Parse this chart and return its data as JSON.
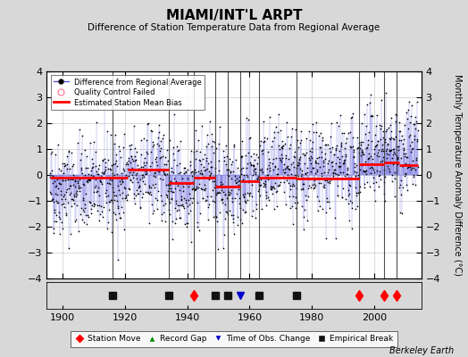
{
  "title": "MIAMI/INT'L ARPT",
  "subtitle": "Difference of Station Temperature Data from Regional Average",
  "ylabel": "Monthly Temperature Anomaly Difference (°C)",
  "xlabel_credit": "Berkeley Earth",
  "xlim": [
    1895,
    2015
  ],
  "ylim": [
    -4,
    4
  ],
  "yticks": [
    -4,
    -3,
    -2,
    -1,
    0,
    1,
    2,
    3,
    4
  ],
  "xticks": [
    1900,
    1920,
    1940,
    1960,
    1980,
    2000
  ],
  "bg_color": "#d8d8d8",
  "plot_bg_color": "#ffffff",
  "seed": 42,
  "data_start_year": 1896,
  "data_end_year": 2014,
  "bias_segments": [
    {
      "x_start": 1896,
      "x_end": 1921,
      "bias": -0.1
    },
    {
      "x_start": 1921,
      "x_end": 1934,
      "bias": 0.22
    },
    {
      "x_start": 1934,
      "x_end": 1942,
      "bias": -0.3
    },
    {
      "x_start": 1942,
      "x_end": 1949,
      "bias": -0.1
    },
    {
      "x_start": 1949,
      "x_end": 1957,
      "bias": -0.45
    },
    {
      "x_start": 1957,
      "x_end": 1963,
      "bias": -0.25
    },
    {
      "x_start": 1963,
      "x_end": 1975,
      "bias": -0.1
    },
    {
      "x_start": 1975,
      "x_end": 1995,
      "bias": -0.15
    },
    {
      "x_start": 1995,
      "x_end": 2003,
      "bias": 0.4
    },
    {
      "x_start": 2003,
      "x_end": 2008,
      "bias": 0.5
    },
    {
      "x_start": 2008,
      "x_end": 2014,
      "bias": 0.38
    }
  ],
  "station_moves": [
    1942,
    1995,
    2003,
    2007
  ],
  "empirical_breaks": [
    1916,
    1934,
    1949,
    1953,
    1963,
    1975
  ],
  "obs_changes": [
    1957
  ],
  "record_gaps": [],
  "line_color": "#5555dd",
  "dot_color": "#000000",
  "bias_color": "#ff0000",
  "station_move_color": "#ff0000",
  "obs_change_color": "#0000cc",
  "record_gap_color": "#008800",
  "empirical_break_color": "#111111",
  "qc_failed_color": "#ff88aa",
  "vline_color": "#333333",
  "grid_color": "#bbbbbb"
}
